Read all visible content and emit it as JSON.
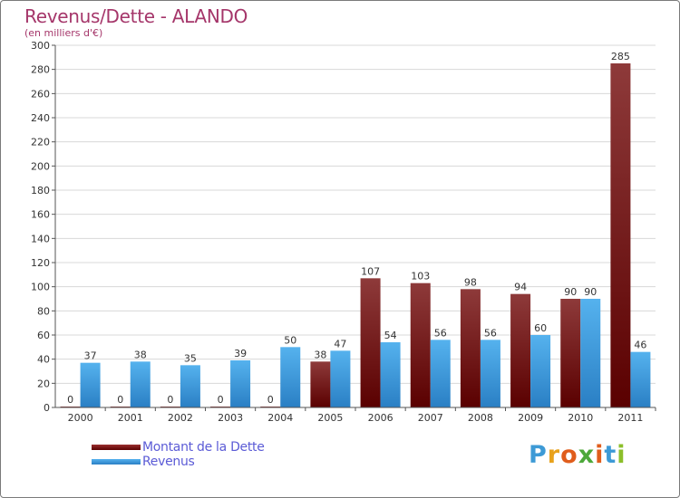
{
  "title": "Revenus/Dette - ALANDO",
  "subtitle": "(en milliers d'€)",
  "legend": {
    "items": [
      {
        "label": "Montant de la Dette",
        "color": "#8b1a1a"
      },
      {
        "label": "Revenus",
        "color": "#3a9de0"
      }
    ]
  },
  "logo": {
    "text": "Proxiti"
  },
  "colors": {
    "debt_top": "#8e3a3a",
    "debt_bottom": "#5a0000",
    "revenue_top": "#55b2ee",
    "revenue_bottom": "#2a7fc4",
    "title": "#a5366a",
    "grid": "#d8d8d8"
  },
  "chart_data": {
    "type": "bar",
    "title": "Revenus/Dette - ALANDO",
    "subtitle": "(en milliers d'€)",
    "categories": [
      "2000",
      "2001",
      "2002",
      "2003",
      "2004",
      "2005",
      "2006",
      "2007",
      "2008",
      "2009",
      "2010",
      "2011"
    ],
    "series": [
      {
        "name": "Montant de la Dette",
        "values": [
          0,
          0,
          0,
          0,
          0,
          38,
          107,
          103,
          98,
          94,
          90,
          285
        ]
      },
      {
        "name": "Revenus",
        "values": [
          37,
          38,
          35,
          39,
          50,
          47,
          54,
          56,
          56,
          60,
          90,
          46
        ]
      }
    ],
    "ylim": [
      0,
      300
    ],
    "yticks": [
      0,
      20,
      40,
      60,
      80,
      100,
      120,
      140,
      160,
      180,
      200,
      220,
      240,
      260,
      280,
      300
    ],
    "grid": true,
    "legend_position": "bottom-left"
  }
}
